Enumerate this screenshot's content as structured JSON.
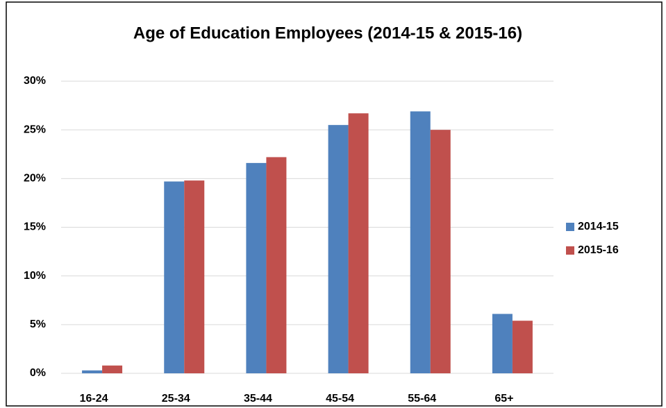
{
  "chart_data": {
    "type": "bar",
    "title": "Age of Education Employees (2014-15 & 2015-16)",
    "categories": [
      "16-24",
      "25-34",
      "35-44",
      "45-54",
      "55-64",
      "65+"
    ],
    "series": [
      {
        "name": "2014-15",
        "color": "#4f81bd",
        "values": [
          0.3,
          19.7,
          21.6,
          25.5,
          26.9,
          6.1
        ]
      },
      {
        "name": "2015-16",
        "color": "#c0504d",
        "values": [
          0.8,
          19.8,
          22.2,
          26.7,
          25.0,
          5.4
        ]
      }
    ],
    "ylim": [
      0,
      30
    ],
    "yticks": [
      {
        "value": 0,
        "label": "0%"
      },
      {
        "value": 5,
        "label": "5%"
      },
      {
        "value": 10,
        "label": "10%"
      },
      {
        "value": 15,
        "label": "15%"
      },
      {
        "value": 20,
        "label": "20%"
      },
      {
        "value": 25,
        "label": "25%"
      },
      {
        "value": 30,
        "label": "30%"
      }
    ],
    "grid": true,
    "legend": "right"
  }
}
